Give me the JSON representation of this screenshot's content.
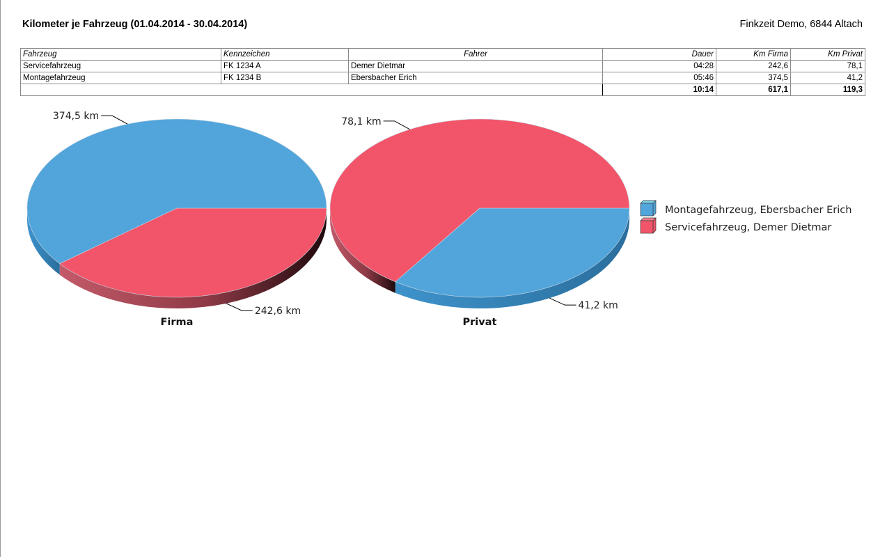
{
  "report": {
    "title": "Kilometer je Fahrzeug (01.04.2014 - 30.04.2014)",
    "company": "Finkzeit Demo, 6844 Altach"
  },
  "table": {
    "headers": [
      "Fahrzeug",
      "Kennzeichen",
      "Fahrer",
      "Dauer",
      "Km Firma",
      "Km Privat"
    ],
    "rows": [
      [
        "Servicefahrzeug",
        "FK 1234 A",
        "Demer Dietmar",
        "04:28",
        "242,6",
        "78,1"
      ],
      [
        "Montagefahrzeug",
        "FK 1234 B",
        "Ebersbacher Erich",
        "05:46",
        "374,5",
        "41,2"
      ]
    ],
    "totals": {
      "dauer": "10:14",
      "km_firma": "617,1",
      "km_privat": "119,3"
    }
  },
  "colors": {
    "montage": "#51a5db",
    "service": "#f25569"
  },
  "chart_data": [
    {
      "type": "pie",
      "title": "Firma",
      "slices": [
        {
          "name": "Montagefahrzeug, Ebersbacher Erich",
          "value": 374.5,
          "label": "374,5 km",
          "color": "#51a5db"
        },
        {
          "name": "Servicefahrzeug, Demer Dietmar",
          "value": 242.6,
          "label": "242,6 km",
          "color": "#f25569"
        }
      ]
    },
    {
      "type": "pie",
      "title": "Privat",
      "slices": [
        {
          "name": "Montagefahrzeug, Ebersbacher Erich",
          "value": 41.2,
          "label": "41,2 km",
          "color": "#51a5db"
        },
        {
          "name": "Servicefahrzeug, Demer Dietmar",
          "value": 78.1,
          "label": "78,1 km",
          "color": "#f25569"
        }
      ]
    }
  ],
  "legend": [
    {
      "label": "Montagefahrzeug, Ebersbacher Erich",
      "color": "#51a5db",
      "color_top": "#7ad2ea"
    },
    {
      "label": "Servicefahrzeug, Demer Dietmar",
      "color": "#f25569",
      "color_top": "#f3808f"
    }
  ]
}
